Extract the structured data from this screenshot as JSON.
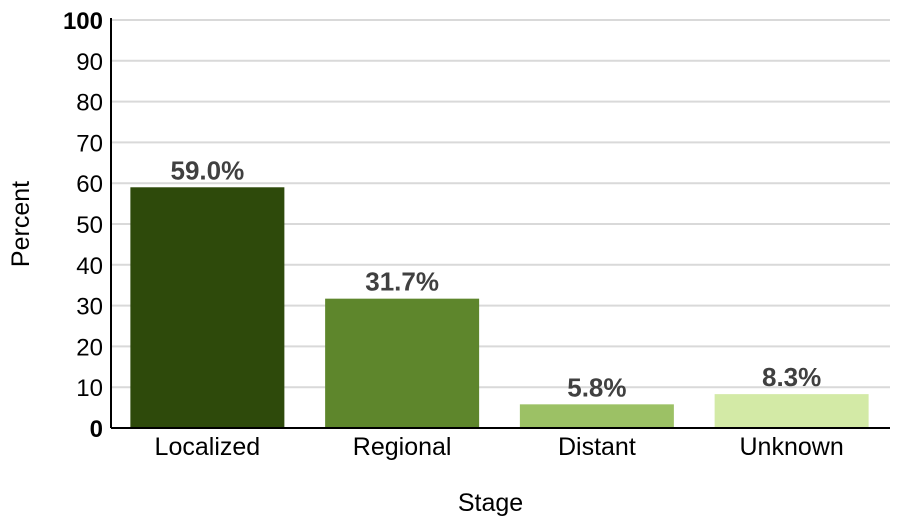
{
  "chart_data": {
    "type": "bar",
    "categories": [
      "Localized",
      "Regional",
      "Distant",
      "Unknown"
    ],
    "values": [
      59.0,
      31.7,
      5.8,
      8.3
    ],
    "value_labels": [
      "59.0%",
      "31.7%",
      "5.8%",
      "8.3%"
    ],
    "colors": [
      "#2e4a0b",
      "#5e862c",
      "#9cc165",
      "#d3eaa6"
    ],
    "xlabel": "Stage",
    "ylabel": "Percent",
    "ylim": [
      0,
      100
    ],
    "yticks": [
      0,
      10,
      20,
      30,
      40,
      50,
      60,
      70,
      80,
      90,
      100
    ],
    "grid": true,
    "legend": "none"
  }
}
